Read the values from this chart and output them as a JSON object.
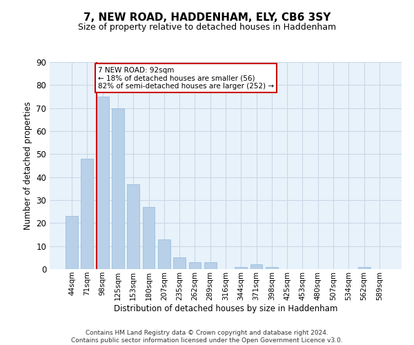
{
  "title": "7, NEW ROAD, HADDENHAM, ELY, CB6 3SY",
  "subtitle": "Size of property relative to detached houses in Haddenham",
  "xlabel": "Distribution of detached houses by size in Haddenham",
  "ylabel": "Number of detached properties",
  "categories": [
    "44sqm",
    "71sqm",
    "98sqm",
    "125sqm",
    "153sqm",
    "180sqm",
    "207sqm",
    "235sqm",
    "262sqm",
    "289sqm",
    "316sqm",
    "344sqm",
    "371sqm",
    "398sqm",
    "425sqm",
    "453sqm",
    "480sqm",
    "507sqm",
    "534sqm",
    "562sqm",
    "589sqm"
  ],
  "values": [
    23,
    48,
    75,
    70,
    37,
    27,
    13,
    5,
    3,
    3,
    0,
    1,
    2,
    1,
    0,
    0,
    0,
    0,
    0,
    1,
    0
  ],
  "bar_color": "#b8d0e8",
  "bar_edge_color": "#92b8d8",
  "highlight_line_color": "#cc0000",
  "annotation_text": "7 NEW ROAD: 92sqm\n← 18% of detached houses are smaller (56)\n82% of semi-detached houses are larger (252) →",
  "annotation_box_color": "#ffffff",
  "annotation_box_edge_color": "#cc0000",
  "ylim": [
    0,
    90
  ],
  "yticks": [
    0,
    10,
    20,
    30,
    40,
    50,
    60,
    70,
    80,
    90
  ],
  "grid_color": "#c8d8e8",
  "background_color": "#e8f2fa",
  "footer_line1": "Contains HM Land Registry data © Crown copyright and database right 2024.",
  "footer_line2": "Contains public sector information licensed under the Open Government Licence v3.0."
}
